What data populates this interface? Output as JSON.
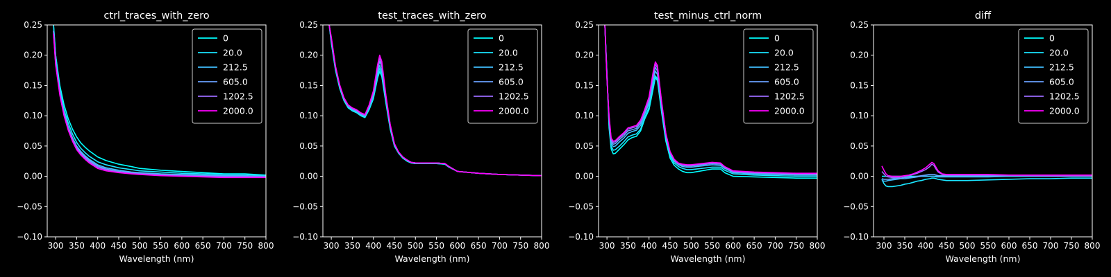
{
  "chart_data": [
    {
      "type": "line",
      "title": "ctrl_traces_with_zero",
      "xlabel": "Wavelength (nm)",
      "ylabel": "",
      "xlim": [
        280,
        800
      ],
      "ylim": [
        -0.1,
        0.25
      ],
      "xticks": [
        "300",
        "350",
        "400",
        "450",
        "500",
        "550",
        "600",
        "650",
        "700",
        "750",
        "800"
      ],
      "yticks": [
        "−0.10",
        "−0.05",
        "0.00",
        "0.05",
        "0.10",
        "0.15",
        "0.20",
        "0.25"
      ],
      "legend_position": "top-right",
      "x": [
        295,
        300,
        310,
        320,
        330,
        340,
        350,
        360,
        370,
        380,
        400,
        420,
        450,
        480,
        500,
        550,
        600,
        650,
        700,
        750,
        800
      ],
      "series": [
        {
          "name": "0",
          "color": "#00ffff",
          "values": [
            0.25,
            0.2,
            0.15,
            0.118,
            0.095,
            0.078,
            0.065,
            0.055,
            0.048,
            0.042,
            0.032,
            0.026,
            0.02,
            0.016,
            0.013,
            0.01,
            0.008,
            0.006,
            0.004,
            0.004,
            0.002
          ]
        },
        {
          "name": "20.0",
          "color": "#1ae5ff",
          "values": [
            0.25,
            0.2,
            0.145,
            0.11,
            0.088,
            0.07,
            0.056,
            0.046,
            0.039,
            0.033,
            0.024,
            0.019,
            0.014,
            0.011,
            0.009,
            0.007,
            0.005,
            0.004,
            0.003,
            0.003,
            0.001
          ]
        },
        {
          "name": "212.5",
          "color": "#40bfff",
          "values": [
            0.24,
            0.19,
            0.14,
            0.105,
            0.082,
            0.064,
            0.05,
            0.041,
            0.034,
            0.028,
            0.019,
            0.014,
            0.01,
            0.007,
            0.006,
            0.004,
            0.003,
            0.002,
            0.001,
            0.001,
            0.0
          ]
        },
        {
          "name": "605.0",
          "color": "#69a0ff",
          "values": [
            0.24,
            0.188,
            0.138,
            0.103,
            0.08,
            0.062,
            0.048,
            0.039,
            0.032,
            0.026,
            0.017,
            0.012,
            0.008,
            0.006,
            0.005,
            0.003,
            0.002,
            0.001,
            0.0,
            0.0,
            -0.001
          ]
        },
        {
          "name": "1202.5",
          "color": "#9b6cff",
          "values": [
            0.238,
            0.186,
            0.136,
            0.101,
            0.078,
            0.06,
            0.046,
            0.037,
            0.03,
            0.024,
            0.015,
            0.011,
            0.007,
            0.005,
            0.004,
            0.002,
            0.001,
            0.0,
            -0.001,
            -0.001,
            -0.001
          ]
        },
        {
          "name": "2000.0",
          "color": "#ff00ff",
          "values": [
            0.235,
            0.184,
            0.134,
            0.1,
            0.076,
            0.058,
            0.044,
            0.035,
            0.028,
            0.022,
            0.013,
            0.009,
            0.006,
            0.004,
            0.003,
            0.001,
            0.0,
            -0.001,
            -0.002,
            -0.002,
            -0.002
          ]
        }
      ]
    },
    {
      "type": "line",
      "title": "test_traces_with_zero",
      "xlabel": "Wavelength (nm)",
      "ylabel": "",
      "xlim": [
        280,
        800
      ],
      "ylim": [
        -0.1,
        0.25
      ],
      "xticks": [
        "300",
        "350",
        "400",
        "450",
        "500",
        "550",
        "600",
        "650",
        "700",
        "750",
        "800"
      ],
      "yticks": [
        "−0.10",
        "−0.05",
        "0.00",
        "0.05",
        "0.10",
        "0.15",
        "0.20",
        "0.25"
      ],
      "legend_position": "top-right",
      "x": [
        295,
        300,
        310,
        320,
        330,
        340,
        350,
        360,
        370,
        380,
        390,
        400,
        410,
        415,
        420,
        430,
        440,
        450,
        460,
        470,
        480,
        490,
        500,
        550,
        570,
        580,
        600,
        650,
        700,
        750,
        800
      ],
      "series": [
        {
          "name": "0",
          "color": "#00ffff",
          "values": [
            0.25,
            0.22,
            0.175,
            0.145,
            0.125,
            0.113,
            0.108,
            0.105,
            0.1,
            0.097,
            0.11,
            0.128,
            0.162,
            0.173,
            0.165,
            0.12,
            0.078,
            0.05,
            0.038,
            0.03,
            0.025,
            0.022,
            0.021,
            0.021,
            0.02,
            0.015,
            0.008,
            0.005,
            0.003,
            0.002,
            0.001
          ]
        },
        {
          "name": "20.0",
          "color": "#1ae5ff",
          "values": [
            0.25,
            0.222,
            0.177,
            0.147,
            0.126,
            0.114,
            0.109,
            0.106,
            0.101,
            0.098,
            0.112,
            0.131,
            0.166,
            0.178,
            0.17,
            0.123,
            0.08,
            0.051,
            0.039,
            0.031,
            0.026,
            0.022,
            0.021,
            0.021,
            0.02,
            0.015,
            0.008,
            0.005,
            0.003,
            0.002,
            0.001
          ]
        },
        {
          "name": "212.5",
          "color": "#40bfff",
          "values": [
            0.25,
            0.224,
            0.178,
            0.148,
            0.127,
            0.115,
            0.11,
            0.107,
            0.102,
            0.099,
            0.113,
            0.133,
            0.17,
            0.183,
            0.175,
            0.126,
            0.082,
            0.052,
            0.039,
            0.031,
            0.026,
            0.023,
            0.022,
            0.022,
            0.021,
            0.016,
            0.008,
            0.005,
            0.003,
            0.002,
            0.001
          ]
        },
        {
          "name": "605.0",
          "color": "#69a0ff",
          "values": [
            0.25,
            0.226,
            0.18,
            0.149,
            0.128,
            0.116,
            0.111,
            0.108,
            0.103,
            0.1,
            0.115,
            0.136,
            0.175,
            0.19,
            0.181,
            0.129,
            0.084,
            0.053,
            0.04,
            0.032,
            0.027,
            0.023,
            0.022,
            0.022,
            0.021,
            0.016,
            0.008,
            0.005,
            0.003,
            0.002,
            0.001
          ]
        },
        {
          "name": "1202.5",
          "color": "#9b6cff",
          "values": [
            0.25,
            0.228,
            0.181,
            0.15,
            0.129,
            0.117,
            0.112,
            0.109,
            0.104,
            0.101,
            0.117,
            0.139,
            0.18,
            0.195,
            0.185,
            0.131,
            0.085,
            0.054,
            0.04,
            0.032,
            0.027,
            0.023,
            0.022,
            0.022,
            0.021,
            0.016,
            0.008,
            0.005,
            0.003,
            0.002,
            0.001
          ]
        },
        {
          "name": "2000.0",
          "color": "#ff00ff",
          "values": [
            0.25,
            0.23,
            0.182,
            0.151,
            0.13,
            0.118,
            0.113,
            0.11,
            0.105,
            0.102,
            0.118,
            0.141,
            0.184,
            0.2,
            0.19,
            0.133,
            0.086,
            0.054,
            0.04,
            0.032,
            0.027,
            0.023,
            0.022,
            0.022,
            0.021,
            0.016,
            0.008,
            0.005,
            0.003,
            0.002,
            0.001
          ]
        }
      ]
    },
    {
      "type": "line",
      "title": "test_minus_ctrl_norm",
      "xlabel": "Wavelength (nm)",
      "ylabel": "",
      "xlim": [
        280,
        800
      ],
      "ylim": [
        -0.1,
        0.25
      ],
      "xticks": [
        "300",
        "350",
        "400",
        "450",
        "500",
        "550",
        "600",
        "650",
        "700",
        "750",
        "800"
      ],
      "yticks": [
        "−0.10",
        "−0.05",
        "0.00",
        "0.05",
        "0.10",
        "0.15",
        "0.20",
        "0.25"
      ],
      "legend_position": "top-right",
      "x": [
        295,
        300,
        305,
        310,
        315,
        320,
        330,
        340,
        350,
        360,
        370,
        380,
        390,
        400,
        410,
        415,
        420,
        430,
        440,
        450,
        460,
        470,
        480,
        490,
        500,
        550,
        570,
        580,
        600,
        650,
        700,
        750,
        800
      ],
      "series": [
        {
          "name": "0",
          "color": "#00ffff",
          "values": [
            0.25,
            0.17,
            0.08,
            0.045,
            0.037,
            0.038,
            0.045,
            0.052,
            0.06,
            0.064,
            0.066,
            0.075,
            0.095,
            0.11,
            0.145,
            0.163,
            0.158,
            0.105,
            0.058,
            0.03,
            0.018,
            0.012,
            0.008,
            0.006,
            0.006,
            0.012,
            0.012,
            0.006,
            0.0,
            -0.001,
            -0.002,
            -0.003,
            -0.003
          ]
        },
        {
          "name": "20.0",
          "color": "#1ae5ff",
          "values": [
            0.25,
            0.168,
            0.085,
            0.05,
            0.043,
            0.044,
            0.05,
            0.057,
            0.065,
            0.068,
            0.07,
            0.078,
            0.098,
            0.114,
            0.15,
            0.166,
            0.161,
            0.108,
            0.062,
            0.034,
            0.022,
            0.016,
            0.013,
            0.011,
            0.011,
            0.015,
            0.015,
            0.01,
            0.004,
            0.002,
            0.001,
            0.0,
            0.0
          ]
        },
        {
          "name": "212.5",
          "color": "#40bfff",
          "values": [
            0.25,
            0.166,
            0.09,
            0.055,
            0.049,
            0.05,
            0.057,
            0.063,
            0.071,
            0.074,
            0.076,
            0.084,
            0.103,
            0.12,
            0.158,
            0.174,
            0.168,
            0.114,
            0.066,
            0.037,
            0.025,
            0.019,
            0.016,
            0.015,
            0.015,
            0.019,
            0.018,
            0.013,
            0.006,
            0.004,
            0.003,
            0.002,
            0.002
          ]
        },
        {
          "name": "605.0",
          "color": "#69a0ff",
          "values": [
            0.25,
            0.164,
            0.094,
            0.058,
            0.053,
            0.054,
            0.061,
            0.067,
            0.075,
            0.077,
            0.079,
            0.088,
            0.106,
            0.124,
            0.164,
            0.18,
            0.174,
            0.118,
            0.068,
            0.039,
            0.026,
            0.02,
            0.018,
            0.017,
            0.017,
            0.021,
            0.02,
            0.014,
            0.007,
            0.005,
            0.004,
            0.003,
            0.003
          ]
        },
        {
          "name": "1202.5",
          "color": "#9b6cff",
          "values": [
            0.25,
            0.162,
            0.097,
            0.061,
            0.056,
            0.057,
            0.064,
            0.07,
            0.078,
            0.08,
            0.082,
            0.091,
            0.109,
            0.128,
            0.169,
            0.185,
            0.179,
            0.121,
            0.07,
            0.04,
            0.027,
            0.021,
            0.019,
            0.018,
            0.018,
            0.022,
            0.021,
            0.015,
            0.008,
            0.006,
            0.005,
            0.004,
            0.004
          ]
        },
        {
          "name": "2000.0",
          "color": "#ff00ff",
          "values": [
            0.25,
            0.16,
            0.1,
            0.063,
            0.058,
            0.059,
            0.066,
            0.072,
            0.08,
            0.082,
            0.084,
            0.093,
            0.111,
            0.131,
            0.173,
            0.189,
            0.183,
            0.123,
            0.071,
            0.041,
            0.028,
            0.022,
            0.02,
            0.019,
            0.019,
            0.023,
            0.022,
            0.016,
            0.009,
            0.007,
            0.006,
            0.005,
            0.005
          ]
        }
      ]
    },
    {
      "type": "line",
      "title": "diff",
      "xlabel": "Wavelength (nm)",
      "ylabel": "",
      "xlim": [
        275,
        800
      ],
      "ylim": [
        -0.1,
        0.25
      ],
      "xticks": [
        "300",
        "350",
        "400",
        "450",
        "500",
        "550",
        "600",
        "650",
        "700",
        "750",
        "800"
      ],
      "yticks": [
        "−0.10",
        "−0.05",
        "0.00",
        "0.05",
        "0.10",
        "0.15",
        "0.20",
        "0.25"
      ],
      "legend_position": "top-right",
      "x": [
        295,
        300,
        305,
        310,
        320,
        330,
        340,
        350,
        360,
        370,
        380,
        390,
        400,
        410,
        415,
        420,
        425,
        430,
        440,
        450,
        470,
        500,
        550,
        600,
        650,
        700,
        750,
        800
      ],
      "series": [
        {
          "name": "0",
          "color": "#00ffff",
          "values": [
            0.0,
            0.0,
            0.0,
            0.0,
            0.0,
            0.0,
            0.0,
            0.0,
            0.0,
            0.0,
            0.0,
            0.0,
            0.0,
            0.0,
            0.0,
            0.0,
            0.0,
            0.0,
            0.0,
            0.0,
            0.0,
            0.0,
            0.0,
            0.0,
            0.0,
            0.0,
            0.0,
            0.0
          ]
        },
        {
          "name": "20.0",
          "color": "#1ae5ff",
          "values": [
            -0.005,
            -0.012,
            -0.016,
            -0.017,
            -0.017,
            -0.016,
            -0.015,
            -0.013,
            -0.012,
            -0.01,
            -0.008,
            -0.007,
            -0.005,
            -0.004,
            -0.003,
            -0.003,
            -0.004,
            -0.005,
            -0.006,
            -0.007,
            -0.007,
            -0.007,
            -0.006,
            -0.005,
            -0.004,
            -0.004,
            -0.003,
            -0.003
          ]
        },
        {
          "name": "212.5",
          "color": "#40bfff",
          "values": [
            -0.007,
            -0.008,
            -0.008,
            -0.007,
            -0.006,
            -0.005,
            -0.004,
            -0.004,
            -0.003,
            -0.002,
            -0.001,
            0.0,
            0.0,
            0.0,
            0.0,
            0.0,
            -0.001,
            -0.001,
            -0.001,
            -0.001,
            -0.001,
            -0.001,
            -0.001,
            0.0,
            0.0,
            0.0,
            0.0,
            0.0
          ]
        },
        {
          "name": "605.0",
          "color": "#69a0ff",
          "values": [
            -0.004,
            -0.005,
            -0.005,
            -0.005,
            -0.004,
            -0.003,
            -0.003,
            -0.002,
            -0.002,
            -0.001,
            0.0,
            0.001,
            0.002,
            0.003,
            0.003,
            0.003,
            0.002,
            0.001,
            0.001,
            0.001,
            0.001,
            0.001,
            0.001,
            0.001,
            0.001,
            0.0,
            0.0,
            0.0
          ]
        },
        {
          "name": "1202.5",
          "color": "#9b6cff",
          "values": [
            0.008,
            0.004,
            0.0,
            -0.001,
            -0.002,
            -0.002,
            -0.001,
            0.0,
            0.001,
            0.003,
            0.005,
            0.008,
            0.011,
            0.016,
            0.02,
            0.018,
            0.012,
            0.007,
            0.003,
            0.002,
            0.002,
            0.002,
            0.002,
            0.002,
            0.001,
            0.001,
            0.001,
            0.001
          ]
        },
        {
          "name": "2000.0",
          "color": "#ff00ff",
          "values": [
            0.017,
            0.01,
            0.004,
            0.001,
            0.0,
            0.0,
            0.0,
            0.001,
            0.002,
            0.004,
            0.007,
            0.01,
            0.014,
            0.02,
            0.023,
            0.021,
            0.015,
            0.009,
            0.004,
            0.003,
            0.003,
            0.003,
            0.003,
            0.002,
            0.002,
            0.002,
            0.002,
            0.002
          ]
        }
      ]
    }
  ]
}
